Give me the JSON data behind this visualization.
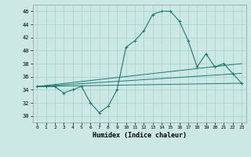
{
  "xlabel": "Humidex (Indice chaleur)",
  "background_color": "#cce8e4",
  "grid_color": "#aacfcb",
  "line_color": "#1a7a6e",
  "xlim": [
    -0.5,
    23.5
  ],
  "ylim": [
    29,
    47
  ],
  "xticks": [
    0,
    1,
    2,
    3,
    4,
    5,
    6,
    7,
    8,
    9,
    10,
    11,
    12,
    13,
    14,
    15,
    16,
    17,
    18,
    19,
    20,
    21,
    22,
    23
  ],
  "yticks": [
    30,
    32,
    34,
    36,
    38,
    40,
    42,
    44,
    46
  ],
  "hours": [
    0,
    1,
    2,
    3,
    4,
    5,
    6,
    7,
    8,
    9,
    10,
    11,
    12,
    13,
    14,
    15,
    16,
    17,
    18,
    19,
    20,
    21,
    22,
    23
  ],
  "main_y": [
    34.5,
    34.5,
    34.5,
    33.5,
    34.0,
    34.5,
    32.0,
    30.5,
    31.5,
    34.0,
    40.5,
    41.5,
    43.0,
    45.5,
    46.0,
    46.0,
    44.5,
    41.5,
    37.5,
    39.5,
    37.5,
    38.0,
    36.5,
    35.0
  ],
  "trend1_x": [
    0,
    23
  ],
  "trend1_y": [
    34.5,
    35.0
  ],
  "trend2_x": [
    0,
    23
  ],
  "trend2_y": [
    34.5,
    36.5
  ],
  "trend3_x": [
    0,
    23
  ],
  "trend3_y": [
    34.5,
    38.0
  ]
}
